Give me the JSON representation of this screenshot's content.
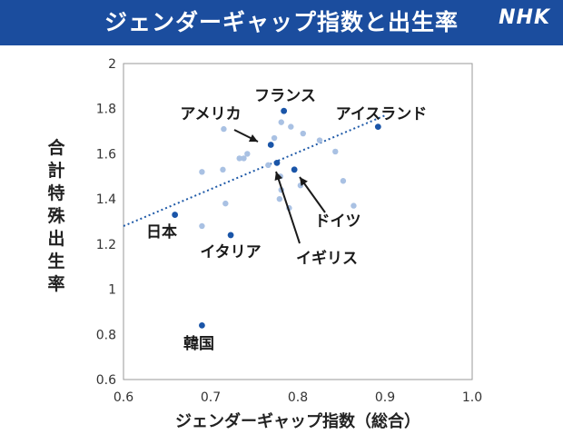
{
  "header": {
    "title": "ジェンダーギャップ指数と出生率",
    "logo": "NHK",
    "bg_color": "#1b4d9e"
  },
  "chart_data": {
    "type": "scatter",
    "title": "ジェンダーギャップ指数と出生率",
    "xlabel": "ジェンダーギャップ指数（総合）",
    "ylabel": "合計特殊出生率",
    "xlim": [
      0.6,
      1.0
    ],
    "ylim": [
      0.6,
      2.0
    ],
    "x_ticks": [
      "0.6",
      "0.7",
      "0.8",
      "0.9",
      "1.0"
    ],
    "y_ticks": [
      "0.6",
      "0.8",
      "1",
      "1.2",
      "1.4",
      "1.6",
      "1.8",
      "2"
    ],
    "grid": false,
    "highlight_color": "#1a55a8",
    "other_color": "#a9c1e3",
    "highlighted": [
      {
        "label": "アメリカ",
        "x": 0.769,
        "y": 1.64
      },
      {
        "label": "フランス",
        "x": 0.784,
        "y": 1.79
      },
      {
        "label": "アイスランド",
        "x": 0.892,
        "y": 1.72
      },
      {
        "label": "ドイツ",
        "x": 0.796,
        "y": 1.53
      },
      {
        "label": "イギリス",
        "x": 0.776,
        "y": 1.56
      },
      {
        "label": "日本",
        "x": 0.659,
        "y": 1.33
      },
      {
        "label": "イタリア",
        "x": 0.723,
        "y": 1.24
      },
      {
        "label": "韓国",
        "x": 0.69,
        "y": 0.84
      }
    ],
    "others": [
      {
        "x": 0.715,
        "y": 1.71
      },
      {
        "x": 0.781,
        "y": 1.74
      },
      {
        "x": 0.792,
        "y": 1.72
      },
      {
        "x": 0.806,
        "y": 1.69
      },
      {
        "x": 0.825,
        "y": 1.66
      },
      {
        "x": 0.773,
        "y": 1.67
      },
      {
        "x": 0.742,
        "y": 1.6
      },
      {
        "x": 0.733,
        "y": 1.58
      },
      {
        "x": 0.738,
        "y": 1.58
      },
      {
        "x": 0.766,
        "y": 1.55
      },
      {
        "x": 0.69,
        "y": 1.52
      },
      {
        "x": 0.714,
        "y": 1.53
      },
      {
        "x": 0.78,
        "y": 1.5
      },
      {
        "x": 0.803,
        "y": 1.46
      },
      {
        "x": 0.781,
        "y": 1.44
      },
      {
        "x": 0.779,
        "y": 1.4
      },
      {
        "x": 0.717,
        "y": 1.38
      },
      {
        "x": 0.79,
        "y": 1.36
      },
      {
        "x": 0.843,
        "y": 1.61
      },
      {
        "x": 0.852,
        "y": 1.48
      },
      {
        "x": 0.864,
        "y": 1.37
      },
      {
        "x": 0.69,
        "y": 1.28
      }
    ],
    "trendline": {
      "x": [
        0.6,
        0.9
      ],
      "y": [
        1.28,
        1.77
      ],
      "style": "dotted"
    }
  }
}
